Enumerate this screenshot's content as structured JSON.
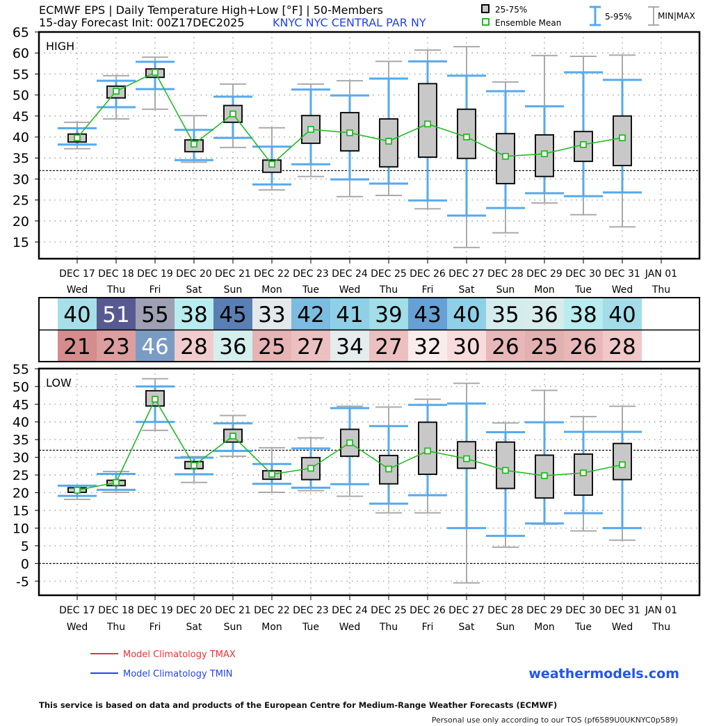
{
  "header": {
    "title": "ECMWF EPS | Daily Temperature High+Low [°F] | 50-Members",
    "subtitle": "15-day Forecast Init: 00Z17DEC2025",
    "station": "KNYC  NYC CENTRAL PAR NY"
  },
  "legend": {
    "box_label": "25-75%",
    "mean_label": "Ensemble Mean",
    "p5_95_label": "5-95%",
    "minmax_label": "MIN|MAX"
  },
  "colors": {
    "box": "#c8c8c8",
    "mean": "#22bb22",
    "p5_95": "#55aaee",
    "minmax": "#aaaaaa",
    "tmax": "#ee3333",
    "tmin": "#2244ee",
    "brand": "#2255ee"
  },
  "days": [
    {
      "date": "DEC 17",
      "dow": "Wed"
    },
    {
      "date": "DEC 18",
      "dow": "Thu"
    },
    {
      "date": "DEC 19",
      "dow": "Fri"
    },
    {
      "date": "DEC 20",
      "dow": "Sat"
    },
    {
      "date": "DEC 21",
      "dow": "Sun"
    },
    {
      "date": "DEC 22",
      "dow": "Mon"
    },
    {
      "date": "DEC 23",
      "dow": "Tue"
    },
    {
      "date": "DEC 24",
      "dow": "Wed"
    },
    {
      "date": "DEC 25",
      "dow": "Thu"
    },
    {
      "date": "DEC 26",
      "dow": "Fri"
    },
    {
      "date": "DEC 27",
      "dow": "Sat"
    },
    {
      "date": "DEC 28",
      "dow": "Sun"
    },
    {
      "date": "DEC 29",
      "dow": "Mon"
    },
    {
      "date": "DEC 30",
      "dow": "Tue"
    },
    {
      "date": "DEC 31",
      "dow": "Wed"
    },
    {
      "date": "JAN 01",
      "dow": "Thu"
    }
  ],
  "forecast_table": {
    "high": [
      {
        "v": "40",
        "bg": "#a6dfe8",
        "fg": "#000"
      },
      {
        "v": "51",
        "bg": "#575a90",
        "fg": "#fff"
      },
      {
        "v": "55",
        "bg": "#a0a0b4",
        "fg": "#000"
      },
      {
        "v": "38",
        "bg": "#b8ecee",
        "fg": "#000"
      },
      {
        "v": "45",
        "bg": "#5a7fb4",
        "fg": "#000"
      },
      {
        "v": "33",
        "bg": "#e4e8ea",
        "fg": "#000"
      },
      {
        "v": "42",
        "bg": "#7cbce0",
        "fg": "#000"
      },
      {
        "v": "41",
        "bg": "#90d0e6",
        "fg": "#000"
      },
      {
        "v": "39",
        "bg": "#a2dde8",
        "fg": "#000"
      },
      {
        "v": "43",
        "bg": "#66a0d4",
        "fg": "#000"
      },
      {
        "v": "40",
        "bg": "#90d0e6",
        "fg": "#000"
      },
      {
        "v": "35",
        "bg": "#d4ecec",
        "fg": "#000"
      },
      {
        "v": "36",
        "bg": "#d8ecec",
        "fg": "#000"
      },
      {
        "v": "38",
        "bg": "#b8ecee",
        "fg": "#000"
      },
      {
        "v": "40",
        "bg": "#a2dde8",
        "fg": "#000"
      }
    ],
    "low": [
      {
        "v": "21",
        "bg": "#d48c8c",
        "fg": "#000"
      },
      {
        "v": "23",
        "bg": "#dc9e9e",
        "fg": "#000"
      },
      {
        "v": "46",
        "bg": "#7a9cc4",
        "fg": "#fff"
      },
      {
        "v": "28",
        "bg": "#f2cccc",
        "fg": "#000"
      },
      {
        "v": "36",
        "bg": "#d4f0ee",
        "fg": "#000"
      },
      {
        "v": "25",
        "bg": "#e6b4b4",
        "fg": "#000"
      },
      {
        "v": "27",
        "bg": "#ecc0c0",
        "fg": "#000"
      },
      {
        "v": "34",
        "bg": "#e4ecee",
        "fg": "#000"
      },
      {
        "v": "27",
        "bg": "#ecc0c0",
        "fg": "#000"
      },
      {
        "v": "32",
        "bg": "#f8ecec",
        "fg": "#000"
      },
      {
        "v": "30",
        "bg": "#f8dcdc",
        "fg": "#000"
      },
      {
        "v": "26",
        "bg": "#e8b8b8",
        "fg": "#000"
      },
      {
        "v": "25",
        "bg": "#e2b0b0",
        "fg": "#000"
      },
      {
        "v": "26",
        "bg": "#e8b8b8",
        "fg": "#000"
      },
      {
        "v": "28",
        "bg": "#f0c8c8",
        "fg": "#000"
      }
    ]
  },
  "chart_data": [
    {
      "type": "box",
      "title": "HIGH",
      "ylim": [
        10,
        65
      ],
      "yticks": [
        15,
        20,
        25,
        30,
        35,
        40,
        45,
        50,
        55,
        60,
        65
      ],
      "reference_line": 32,
      "grid": true,
      "fields": [
        "min",
        "p5",
        "q1",
        "mean",
        "q3",
        "p95",
        "max"
      ],
      "values": [
        [
          37.2,
          38.2,
          38.8,
          39.8,
          40.7,
          42.1,
          43.5
        ],
        [
          44.3,
          47.1,
          49.3,
          50.9,
          52.1,
          53.4,
          54.6
        ],
        [
          46.6,
          51.4,
          54.2,
          55.4,
          56.2,
          57.9,
          59.0
        ],
        [
          34.0,
          34.5,
          36.5,
          38.3,
          39.3,
          41.7,
          45.1
        ],
        [
          37.5,
          39.8,
          43.5,
          45.5,
          47.5,
          49.6,
          52.6
        ],
        [
          27.4,
          28.7,
          31.6,
          33.5,
          34.5,
          37.7,
          42.2
        ],
        [
          30.6,
          33.5,
          38.5,
          41.8,
          45.1,
          51.3,
          52.6
        ],
        [
          25.8,
          29.9,
          36.7,
          41.0,
          45.8,
          49.9,
          53.4
        ],
        [
          26.1,
          28.9,
          32.9,
          39.0,
          44.3,
          53.9,
          58.0
        ],
        [
          22.9,
          24.9,
          35.2,
          43.1,
          52.7,
          58.0,
          60.7
        ],
        [
          13.7,
          21.3,
          34.9,
          40.0,
          46.6,
          54.6,
          61.5
        ],
        [
          17.2,
          23.1,
          28.9,
          35.4,
          40.8,
          50.9,
          53.1
        ],
        [
          24.3,
          26.6,
          30.6,
          36.0,
          40.5,
          47.3,
          59.4
        ],
        [
          21.5,
          25.9,
          34.2,
          38.2,
          41.3,
          55.4,
          59.2
        ],
        [
          18.6,
          26.8,
          33.2,
          39.8,
          45.0,
          53.6,
          59.5
        ]
      ]
    },
    {
      "type": "box",
      "title": "LOW",
      "ylim": [
        -8.8,
        55
      ],
      "yticks": [
        -5,
        0,
        5,
        10,
        15,
        20,
        25,
        30,
        35,
        40,
        45,
        50,
        55
      ],
      "reference_line": 32,
      "zero_line": 0,
      "grid": true,
      "fields": [
        "min",
        "p5",
        "q1",
        "mean",
        "q3",
        "p95",
        "max"
      ],
      "values": [
        [
          18.1,
          19.1,
          20.1,
          20.7,
          21.4,
          22.0,
          22.0
        ],
        [
          20.1,
          20.8,
          22.0,
          22.9,
          23.5,
          25.3,
          26.0
        ],
        [
          37.6,
          40.0,
          44.5,
          46.4,
          48.8,
          50.0,
          52.2
        ],
        [
          22.9,
          25.2,
          26.8,
          27.7,
          28.8,
          29.9,
          30.2
        ],
        [
          30.3,
          31.8,
          34.3,
          36.0,
          37.9,
          39.6,
          41.8
        ],
        [
          20.1,
          22.5,
          23.8,
          25.2,
          26.2,
          28.1,
          32.7
        ],
        [
          20.6,
          21.4,
          23.7,
          26.9,
          29.9,
          32.5,
          35.5
        ],
        [
          19.0,
          22.4,
          30.3,
          34.1,
          37.9,
          43.9,
          44.4
        ],
        [
          14.3,
          16.9,
          22.5,
          26.7,
          30.5,
          38.8,
          44.2
        ],
        [
          14.3,
          19.3,
          25.2,
          31.8,
          39.9,
          44.8,
          46.4
        ],
        [
          -5.5,
          10.0,
          26.9,
          29.6,
          34.4,
          45.2,
          50.9
        ],
        [
          4.6,
          7.8,
          21.2,
          26.3,
          34.3,
          37.1,
          39.7
        ],
        [
          11.1,
          11.3,
          18.5,
          24.8,
          30.6,
          39.9,
          48.9
        ],
        [
          9.2,
          14.2,
          19.3,
          25.6,
          30.9,
          37.2,
          41.5
        ],
        [
          6.6,
          10.0,
          23.7,
          27.9,
          33.9,
          37.2,
          44.4
        ]
      ]
    }
  ],
  "bottom_legend": {
    "tmax_label": "Model Climatology TMAX",
    "tmin_label": "Model Climatology TMIN",
    "brand": "weathermodels.com"
  },
  "footer": {
    "disclaimer": "This service is based on data and products of the European Centre for Medium-Range Weather Forecasts (ECMWF)",
    "tos": "Personal use only according to our TOS (pf6589U0UKNYC0p589)"
  }
}
